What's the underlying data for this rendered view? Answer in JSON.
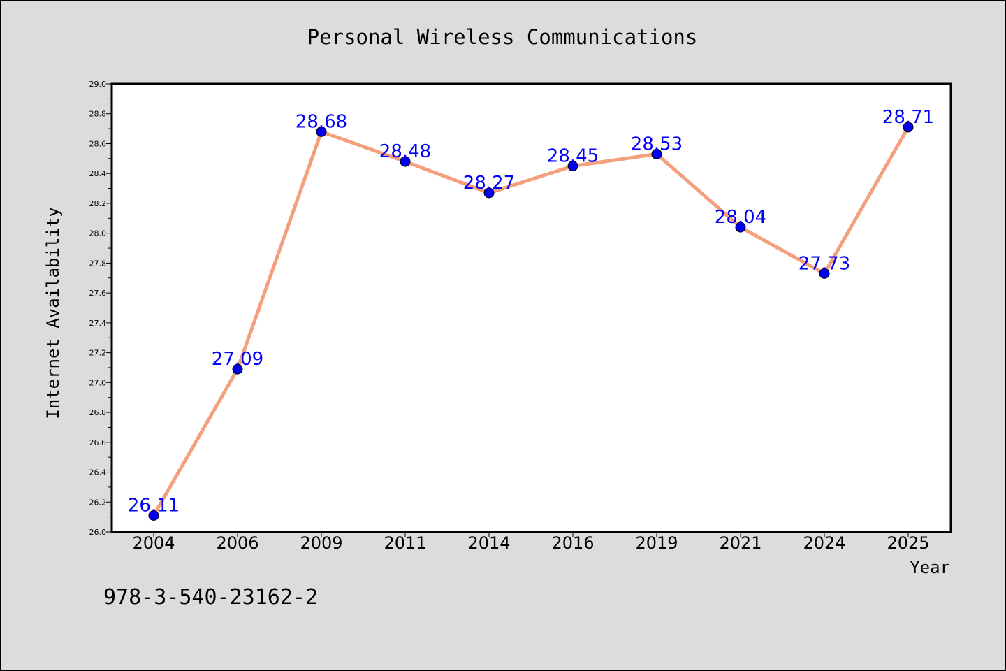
{
  "chart_data": {
    "type": "line",
    "title": "Personal Wireless Communications",
    "xlabel": "Year",
    "ylabel": "Internet Availability",
    "categories": [
      "2004",
      "2006",
      "2009",
      "2011",
      "2014",
      "2016",
      "2019",
      "2021",
      "2024",
      "2025"
    ],
    "values": [
      26.11,
      27.09,
      28.68,
      28.48,
      28.27,
      28.45,
      28.53,
      28.04,
      27.73,
      28.71
    ],
    "data_labels": [
      "26.11",
      "27.09",
      "28.68",
      "28.48",
      "28.27",
      "28.45",
      "28.53",
      "28.04",
      "27.73",
      "28.71"
    ],
    "ylim": [
      26.0,
      29.0
    ],
    "yticks": [
      "26.0",
      "26.2",
      "26.4",
      "26.6",
      "26.8",
      "27.0",
      "27.2",
      "27.4",
      "27.6",
      "27.8",
      "28.0",
      "28.2",
      "28.4",
      "28.6",
      "28.8",
      "29.0"
    ],
    "grid": false,
    "legend": "none",
    "colors": {
      "line": "#f4a07f",
      "marker": "#0000ee",
      "label": "#0000ff",
      "background": "#dcdcdc",
      "plot_background": "#ffffff"
    }
  },
  "footer": {
    "isbn": "978-3-540-23162-2"
  }
}
